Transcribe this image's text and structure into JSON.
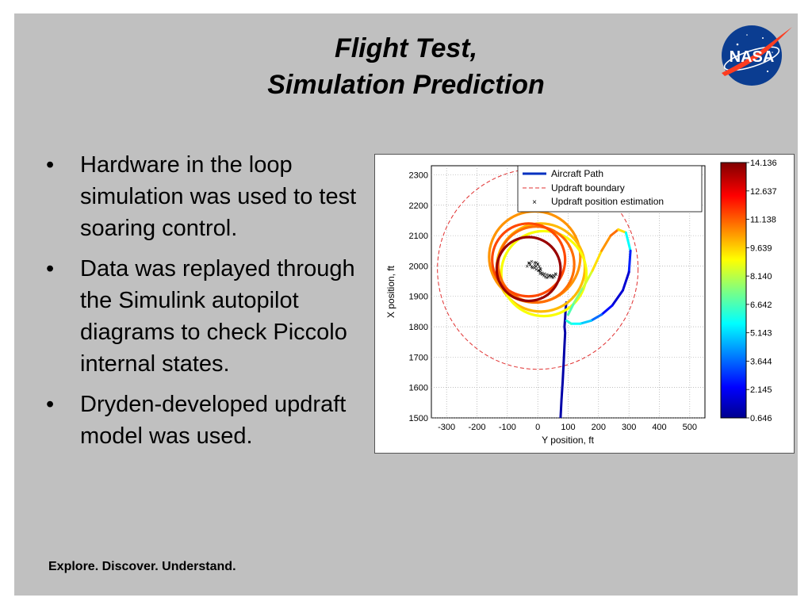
{
  "slide": {
    "title_lines": [
      "Flight Test,",
      "Simulation Prediction"
    ],
    "bullets": [
      "Hardware in the loop simulation was used to test soaring control.",
      "Data was replayed through the Simulink autopilot diagrams to check Piccolo internal states.",
      "Dryden-developed updraft model was used."
    ],
    "bullet_symbol": "•",
    "footer": "Explore. Discover. Understand.",
    "logo_text": "NASA",
    "colors": {
      "background": "#c0c0c0",
      "nasa_blue": "#0b3d91",
      "nasa_red": "#fc3d21"
    }
  },
  "chart_data": {
    "type": "line",
    "xlabel": "Y position, ft",
    "ylabel": "X position, ft",
    "xlim": [
      -350,
      550
    ],
    "ylim": [
      1500,
      2330
    ],
    "x_ticks": [
      -300,
      -200,
      -100,
      0,
      100,
      200,
      300,
      400,
      500
    ],
    "y_ticks": [
      1500,
      1600,
      1700,
      1800,
      1900,
      2000,
      2100,
      2200,
      2300
    ],
    "grid": true,
    "legend": {
      "placement": "top-right",
      "entries": [
        "Aircraft Path",
        "Updraft boundary",
        "Updraft position estimation"
      ]
    },
    "colorbar": {
      "ticks": [
        "14.136",
        "12.637",
        "11.138",
        "9.639",
        "8.140",
        "6.642",
        "5.143",
        "3.644",
        "2.145",
        "0.646"
      ],
      "min": 0.646,
      "max": 14.136
    },
    "updraft_boundary": {
      "center": [
        0,
        1990
      ],
      "radius": 330
    },
    "aircraft_path": {
      "approach": {
        "x": [
          75,
          78,
          82,
          85,
          88,
          90,
          88,
          90,
          92,
          94
        ],
        "y": [
          1500,
          1560,
          1620,
          1680,
          1740,
          1780,
          1800,
          1830,
          1860,
          1880
        ]
      },
      "loops": [
        {
          "center": [
            -10,
            2030
          ],
          "radius": 150,
          "value": 10.5
        },
        {
          "center": [
            10,
            1995
          ],
          "radius": 145,
          "value": 10.0
        },
        {
          "center": [
            20,
            1975
          ],
          "radius": 140,
          "value": 9.0
        },
        {
          "center": [
            -5,
            2005
          ],
          "radius": 125,
          "value": 11.0
        },
        {
          "center": [
            -30,
            2020
          ],
          "radius": 120,
          "value": 11.5
        },
        {
          "center": [
            -30,
            1990
          ],
          "radius": 105,
          "value": 13.8
        }
      ],
      "exit": {
        "x": [
          100,
          120,
          150,
          180,
          210,
          240,
          265,
          290,
          305,
          300,
          280,
          245,
          210,
          175,
          140,
          110,
          95
        ],
        "y": [
          1840,
          1880,
          1930,
          1985,
          2050,
          2100,
          2120,
          2110,
          2050,
          1980,
          1920,
          1870,
          1840,
          1820,
          1810,
          1810,
          1820
        ],
        "values": [
          6.5,
          7,
          8,
          9,
          10,
          11,
          11,
          8,
          3.5,
          2,
          1.5,
          2,
          3,
          4.5,
          5.5,
          6,
          6.5
        ]
      }
    },
    "updraft_estimation": {
      "x": [
        -35,
        -30,
        -25,
        -18,
        -10,
        -5,
        0,
        5,
        10,
        5,
        8,
        15,
        20,
        25,
        30,
        35,
        40,
        45,
        50,
        55,
        60,
        58,
        52,
        45,
        38,
        30,
        22,
        14,
        8,
        2,
        -5,
        -12,
        -20,
        -25,
        -28,
        -20,
        -10,
        0,
        -5,
        8
      ],
      "y": [
        2000,
        2010,
        2005,
        1995,
        2002,
        2012,
        2008,
        1998,
        1990,
        1985,
        1975,
        1972,
        1968,
        1965,
        1962,
        1965,
        1970,
        1968,
        1962,
        1966,
        1972,
        1975,
        1970,
        1965,
        1968,
        1972,
        1975,
        1978,
        1982,
        1986,
        1990,
        1994,
        1998,
        2005,
        2010,
        2015,
        2012,
        2006,
        1999,
        1992
      ]
    }
  }
}
